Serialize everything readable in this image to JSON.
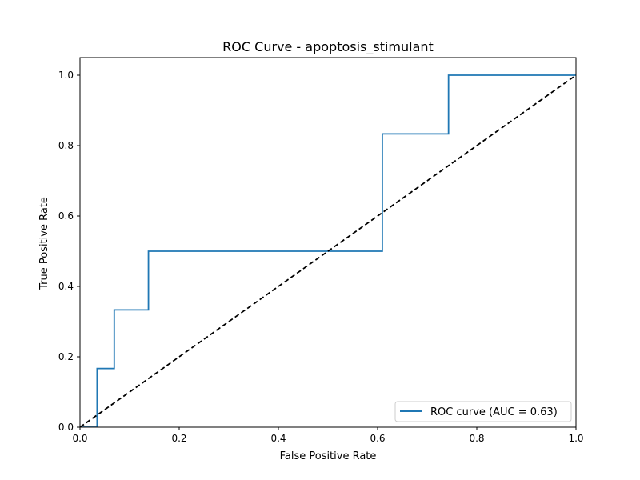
{
  "chart_data": {
    "type": "line",
    "title": "ROC Curve - apoptosis_stimulant",
    "xlabel": "False Positive Rate",
    "ylabel": "True Positive Rate",
    "xlim": [
      0.0,
      1.0
    ],
    "ylim": [
      0.0,
      1.05
    ],
    "x_ticks": [
      "0.0",
      "0.2",
      "0.4",
      "0.6",
      "0.8",
      "1.0"
    ],
    "y_ticks": [
      "0.0",
      "0.2",
      "0.4",
      "0.6",
      "0.8",
      "1.0"
    ],
    "grid": false,
    "legend": {
      "placement": "lower-right"
    },
    "series": [
      {
        "name": "ROC curve (AUC = 0.63)",
        "style": "step",
        "color": "#1f77b4",
        "x": [
          0.0,
          0.0345,
          0.0345,
          0.069,
          0.069,
          0.138,
          0.138,
          0.6095,
          0.6095,
          0.743,
          0.743,
          1.0
        ],
        "y": [
          0.0,
          0.0,
          0.1667,
          0.1667,
          0.3333,
          0.3333,
          0.5,
          0.5,
          0.8333,
          0.8333,
          1.0,
          1.0
        ]
      },
      {
        "style": "dashed",
        "color": "#000000",
        "x": [
          0.0,
          1.0
        ],
        "y": [
          0.0,
          1.0
        ]
      }
    ]
  }
}
